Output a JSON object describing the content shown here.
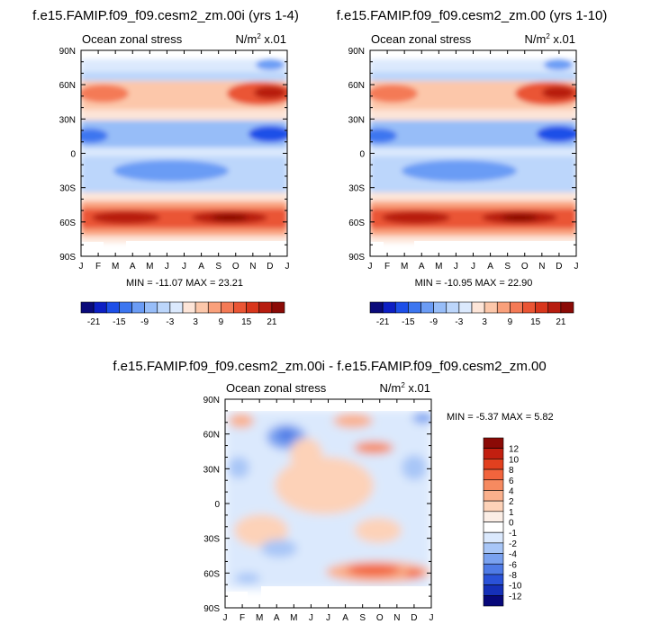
{
  "panels": [
    {
      "title": "f.e15.FAMIP.f09_f09.cesm2_zm.00i (yrs 1-4)",
      "field_label": "Ocean zonal stress",
      "units_prefix": "N/m",
      "units_exp": "2",
      "units_suffix": " x.01",
      "stats": "MIN = -11.07 MAX =  23.21"
    },
    {
      "title": "f.e15.FAMIP.f09_f09.cesm2_zm.00 (yrs 1-10)",
      "field_label": "Ocean zonal stress",
      "units_prefix": "N/m",
      "units_exp": "2",
      "units_suffix": " x.01",
      "stats": "MIN = -10.95 MAX =  22.90"
    },
    {
      "title": "f.e15.FAMIP.f09_f09.cesm2_zm.00i - f.e15.FAMIP.f09_f09.cesm2_zm.00",
      "field_label": "Ocean zonal stress",
      "units_prefix": "N/m",
      "units_exp": "2",
      "units_suffix": " x.01",
      "stats": "MIN =  -5.37 MAX =   5.82"
    }
  ],
  "chart_data": [
    {
      "type": "heatmap",
      "title": "f.e15.FAMIP.f09_f09.cesm2_zm.00i (yrs 1-4)",
      "x_tick_labels": [
        "J",
        "F",
        "M",
        "A",
        "M",
        "J",
        "J",
        "A",
        "S",
        "O",
        "N",
        "D",
        "J"
      ],
      "y_tick_labels": [
        "90N",
        "60N",
        "30N",
        "0",
        "30S",
        "60S",
        "90S"
      ],
      "y_range": [
        -90,
        90
      ],
      "fields": [
        {
          "lat": 77,
          "value": -4
        },
        {
          "lat": 65,
          "value": -2
        },
        {
          "lat": 50,
          "value": 9
        },
        {
          "lat": 38,
          "value": 3
        },
        {
          "lat": 15,
          "value": -7
        },
        {
          "lat": -13,
          "value": -5
        },
        {
          "lat": -35,
          "value": 3
        },
        {
          "lat": -55,
          "value": 20
        },
        {
          "lat": -68,
          "value": 1
        }
      ],
      "min": -11.07,
      "max": 23.21,
      "colorbar": {
        "labels": [
          "-21",
          "-15",
          "-9",
          "-3",
          "3",
          "9",
          "15",
          "21"
        ],
        "colors": [
          "#0a0a7a",
          "#0d1fc4",
          "#1d4fe8",
          "#3c76f0",
          "#6b9cf5",
          "#97bdf8",
          "#bcd6fb",
          "#dbe9fd",
          "#fde5d8",
          "#fcc7aa",
          "#f9a07b",
          "#f47a56",
          "#ea5534",
          "#d8361c",
          "#b71c0f",
          "#8b0a06"
        ]
      }
    },
    {
      "type": "heatmap",
      "title": "f.e15.FAMIP.f09_f09.cesm2_zm.00 (yrs 1-10)",
      "x_tick_labels": [
        "J",
        "F",
        "M",
        "A",
        "M",
        "J",
        "J",
        "A",
        "S",
        "O",
        "N",
        "D",
        "J"
      ],
      "y_tick_labels": [
        "90N",
        "60N",
        "30N",
        "0",
        "30S",
        "60S",
        "90S"
      ],
      "y_range": [
        -90,
        90
      ],
      "fields": [
        {
          "lat": 77,
          "value": -4
        },
        {
          "lat": 65,
          "value": -2
        },
        {
          "lat": 50,
          "value": 9
        },
        {
          "lat": 38,
          "value": 3
        },
        {
          "lat": 15,
          "value": -7
        },
        {
          "lat": -13,
          "value": -5
        },
        {
          "lat": -35,
          "value": 3
        },
        {
          "lat": -55,
          "value": 20
        },
        {
          "lat": -68,
          "value": 1
        }
      ],
      "min": -10.95,
      "max": 22.9,
      "colorbar": {
        "labels": [
          "-21",
          "-15",
          "-9",
          "-3",
          "3",
          "9",
          "15",
          "21"
        ],
        "colors": [
          "#0a0a7a",
          "#0d1fc4",
          "#1d4fe8",
          "#3c76f0",
          "#6b9cf5",
          "#97bdf8",
          "#bcd6fb",
          "#dbe9fd",
          "#fde5d8",
          "#fcc7aa",
          "#f9a07b",
          "#f47a56",
          "#ea5534",
          "#d8361c",
          "#b71c0f",
          "#8b0a06"
        ]
      }
    },
    {
      "type": "heatmap",
      "title": "f.e15.FAMIP.f09_f09.cesm2_zm.00i - f.e15.FAMIP.f09_f09.cesm2_zm.00",
      "x_tick_labels": [
        "J",
        "F",
        "M",
        "A",
        "M",
        "J",
        "J",
        "A",
        "S",
        "O",
        "N",
        "D",
        "J"
      ],
      "y_tick_labels": [
        "90N",
        "60N",
        "30N",
        "0",
        "30S",
        "60S",
        "90S"
      ],
      "y_range": [
        -90,
        90
      ],
      "min": -5.37,
      "max": 5.82,
      "colorbar": {
        "labels": [
          "12",
          "10",
          "8",
          "6",
          "4",
          "2",
          "1",
          "0",
          "-1",
          "-2",
          "-4",
          "-6",
          "-8",
          "-10",
          "-12"
        ],
        "colors": [
          "#8b0a06",
          "#c21f10",
          "#e2401f",
          "#f2643d",
          "#f68a60",
          "#fab08c",
          "#fdd2b8",
          "#fbeee6",
          "#ffffff",
          "#dbe9fd",
          "#a8c6f7",
          "#7aa2f0",
          "#4f7be6",
          "#2a52d8",
          "#1530b8",
          "#07087a"
        ]
      }
    }
  ]
}
